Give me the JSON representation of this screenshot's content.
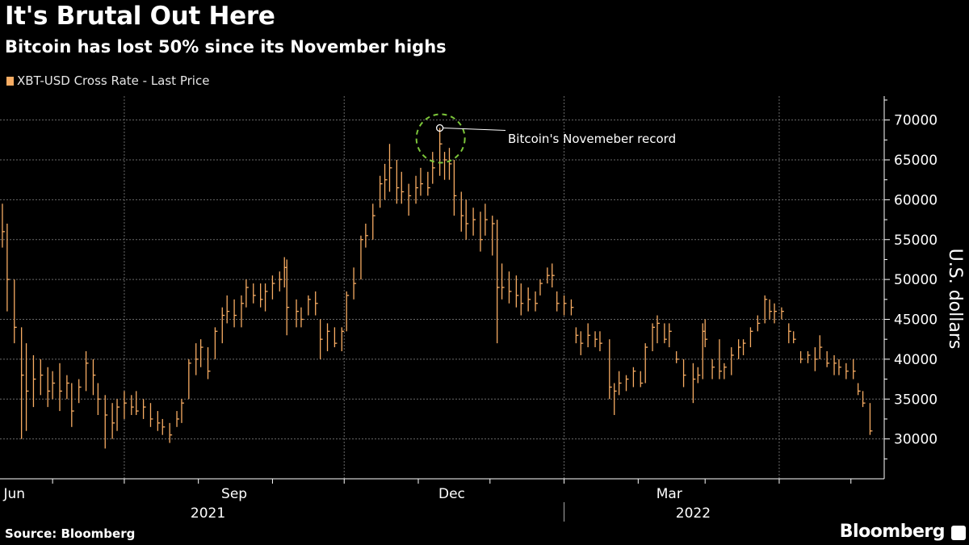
{
  "header": {
    "title": "It's Brutal Out Here",
    "subtitle": "Bitcoin has lost 50% since its November highs"
  },
  "footer": {
    "source": "Source: Bloomberg",
    "brand": "Bloomberg"
  },
  "chart_data": {
    "type": "ohlc-bar",
    "legend": [
      {
        "name": "XBT-USD Cross Rate - Last Price",
        "color": "#f7ac63"
      }
    ],
    "legend_placement": "top-left",
    "ylabel": "U.S. dollars",
    "ylim": [
      25000,
      73000
    ],
    "yticks": [
      "30000",
      "35000",
      "40000",
      "45000",
      "50000",
      "55000",
      "60000",
      "65000",
      "70000"
    ],
    "y_axis_side": "right",
    "xlim": [
      "2021-05-10",
      "2022-05-15"
    ],
    "xticks": [
      {
        "label": "Jun",
        "date": "2021-05-16"
      },
      {
        "label": "Sep",
        "date": "2021-08-16"
      },
      {
        "label": "Dec",
        "date": "2021-11-15"
      },
      {
        "label": "Mar",
        "date": "2022-02-14"
      }
    ],
    "year_labels": [
      {
        "label": "2021",
        "date": "2021-08-05"
      },
      {
        "label": "2022",
        "date": "2022-02-24"
      }
    ],
    "grid": true,
    "annotation": {
      "text": "Bitcoin's Novemeber record",
      "date": "2021-11-10",
      "value": 69000,
      "marker_color": "#7cc63a"
    },
    "columns": [
      "date",
      "high",
      "low",
      "close"
    ],
    "bars": [
      [
        "2021-05-11",
        59500,
        54000,
        56000
      ],
      [
        "2021-05-13",
        57000,
        46000,
        50000
      ],
      [
        "2021-05-16",
        50000,
        42000,
        44000
      ],
      [
        "2021-05-19",
        44000,
        30000,
        38000
      ],
      [
        "2021-05-21",
        42000,
        31000,
        36000
      ],
      [
        "2021-05-24",
        40500,
        34000,
        37500
      ],
      [
        "2021-05-27",
        40000,
        35500,
        38000
      ],
      [
        "2021-05-30",
        39000,
        34000,
        36000
      ],
      [
        "2021-06-01",
        38500,
        35000,
        37000
      ],
      [
        "2021-06-04",
        39500,
        33500,
        36000
      ],
      [
        "2021-06-07",
        38000,
        35000,
        37000
      ],
      [
        "2021-06-09",
        37000,
        31500,
        33500
      ],
      [
        "2021-06-12",
        37500,
        34500,
        36500
      ],
      [
        "2021-06-15",
        41000,
        36000,
        39500
      ],
      [
        "2021-06-18",
        40000,
        35500,
        38000
      ],
      [
        "2021-06-20",
        37000,
        33000,
        35000
      ],
      [
        "2021-06-23",
        35500,
        28800,
        33000
      ],
      [
        "2021-06-26",
        34500,
        30000,
        32000
      ],
      [
        "2021-06-28",
        35000,
        31000,
        34000
      ],
      [
        "2021-07-01",
        36000,
        32500,
        34500
      ],
      [
        "2021-07-04",
        35500,
        33000,
        34000
      ],
      [
        "2021-07-06",
        36000,
        33000,
        33500
      ],
      [
        "2021-07-09",
        35000,
        32500,
        34000
      ],
      [
        "2021-07-12",
        34500,
        31500,
        32500
      ],
      [
        "2021-07-15",
        33500,
        31000,
        32000
      ],
      [
        "2021-07-17",
        32500,
        30500,
        31500
      ],
      [
        "2021-07-20",
        32000,
        29500,
        30500
      ],
      [
        "2021-07-23",
        33500,
        31500,
        32500
      ],
      [
        "2021-07-25",
        35000,
        32000,
        34500
      ],
      [
        "2021-07-28",
        40000,
        35000,
        39500
      ],
      [
        "2021-07-31",
        42000,
        38000,
        40000
      ],
      [
        "2021-08-02",
        42500,
        39000,
        41500
      ],
      [
        "2021-08-05",
        41500,
        37500,
        38500
      ],
      [
        "2021-08-08",
        44000,
        40000,
        43500
      ],
      [
        "2021-08-11",
        46500,
        42000,
        45500
      ],
      [
        "2021-08-13",
        48000,
        44500,
        46000
      ],
      [
        "2021-08-16",
        47500,
        44000,
        45500
      ],
      [
        "2021-08-19",
        48000,
        44000,
        47000
      ],
      [
        "2021-08-21",
        50000,
        46500,
        49000
      ],
      [
        "2021-08-24",
        49500,
        47000,
        48000
      ],
      [
        "2021-08-27",
        49500,
        46500,
        47500
      ],
      [
        "2021-08-29",
        49500,
        46000,
        48500
      ],
      [
        "2021-09-01",
        50500,
        47500,
        49500
      ],
      [
        "2021-09-04",
        51000,
        48500,
        50000
      ],
      [
        "2021-09-06",
        52800,
        49000,
        51500
      ],
      [
        "2021-09-07",
        52500,
        43000,
        46500
      ],
      [
        "2021-09-11",
        47500,
        44000,
        46000
      ],
      [
        "2021-09-13",
        46500,
        44000,
        45000
      ],
      [
        "2021-09-16",
        48000,
        45500,
        47500
      ],
      [
        "2021-09-19",
        48500,
        45500,
        47000
      ],
      [
        "2021-09-21",
        45000,
        40000,
        42500
      ],
      [
        "2021-09-24",
        44500,
        41000,
        43500
      ],
      [
        "2021-09-27",
        44000,
        41500,
        42000
      ],
      [
        "2021-09-30",
        44000,
        41000,
        43500
      ],
      [
        "2021-10-02",
        48500,
        43500,
        48000
      ],
      [
        "2021-10-05",
        51500,
        47500,
        49500
      ],
      [
        "2021-10-08",
        55500,
        50000,
        55000
      ],
      [
        "2021-10-10",
        57000,
        54000,
        55500
      ],
      [
        "2021-10-13",
        59500,
        55000,
        58000
      ],
      [
        "2021-10-16",
        63000,
        59000,
        62000
      ],
      [
        "2021-10-18",
        64500,
        60000,
        62500
      ],
      [
        "2021-10-20",
        67000,
        61000,
        64000
      ],
      [
        "2021-10-23",
        65000,
        59500,
        61500
      ],
      [
        "2021-10-25",
        63500,
        59500,
        61000
      ],
      [
        "2021-10-28",
        62000,
        58000,
        60500
      ],
      [
        "2021-10-31",
        63000,
        59500,
        61500
      ],
      [
        "2021-11-02",
        64000,
        60500,
        62000
      ],
      [
        "2021-11-05",
        63500,
        60500,
        61500
      ],
      [
        "2021-11-07",
        66000,
        62000,
        64000
      ],
      [
        "2021-11-10",
        69000,
        63000,
        67000
      ],
      [
        "2021-11-12",
        66000,
        62500,
        65000
      ],
      [
        "2021-11-14",
        66500,
        62500,
        64500
      ],
      [
        "2021-11-16",
        65000,
        58000,
        60500
      ],
      [
        "2021-11-19",
        61000,
        56000,
        58000
      ],
      [
        "2021-11-21",
        60000,
        55000,
        57000
      ],
      [
        "2021-11-24",
        59000,
        55500,
        57500
      ],
      [
        "2021-11-27",
        58500,
        53500,
        55000
      ],
      [
        "2021-11-29",
        59500,
        55500,
        57500
      ],
      [
        "2021-12-02",
        58000,
        53000,
        57000
      ],
      [
        "2021-12-04",
        57500,
        42000,
        49000
      ],
      [
        "2021-12-06",
        52000,
        47500,
        49000
      ],
      [
        "2021-12-09",
        51000,
        47000,
        48500
      ],
      [
        "2021-12-12",
        50500,
        46500,
        48000
      ],
      [
        "2021-12-14",
        49500,
        45500,
        47000
      ],
      [
        "2021-12-17",
        49000,
        46000,
        47500
      ],
      [
        "2021-12-20",
        48500,
        46000,
        47000
      ],
      [
        "2021-12-22",
        50000,
        48000,
        49500
      ],
      [
        "2021-12-25",
        51500,
        49500,
        50500
      ],
      [
        "2021-12-27",
        52000,
        49000,
        50500
      ],
      [
        "2021-12-29",
        48500,
        46000,
        47000
      ],
      [
        "2022-01-01",
        48000,
        45500,
        47000
      ],
      [
        "2022-01-04",
        47500,
        45500,
        46500
      ],
      [
        "2022-01-06",
        44000,
        42000,
        43000
      ],
      [
        "2022-01-08",
        43500,
        40500,
        42000
      ],
      [
        "2022-01-11",
        44500,
        41500,
        43000
      ],
      [
        "2022-01-14",
        43500,
        41500,
        42500
      ],
      [
        "2022-01-16",
        43500,
        41000,
        42000
      ],
      [
        "2022-01-20",
        42500,
        35000,
        36500
      ],
      [
        "2022-01-22",
        37000,
        33000,
        36000
      ],
      [
        "2022-01-24",
        38500,
        35500,
        37000
      ],
      [
        "2022-01-27",
        38000,
        36000,
        37500
      ],
      [
        "2022-01-30",
        39000,
        36500,
        38500
      ],
      [
        "2022-02-02",
        38500,
        36500,
        37000
      ],
      [
        "2022-02-04",
        42000,
        37000,
        41500
      ],
      [
        "2022-02-07",
        44500,
        41000,
        44000
      ],
      [
        "2022-02-09",
        45500,
        42000,
        44500
      ],
      [
        "2022-02-12",
        44500,
        42000,
        42500
      ],
      [
        "2022-02-14",
        44500,
        41500,
        43500
      ],
      [
        "2022-02-17",
        41000,
        39500,
        40000
      ],
      [
        "2022-02-20",
        40000,
        36500,
        38000
      ],
      [
        "2022-02-24",
        39500,
        34500,
        37500
      ],
      [
        "2022-02-26",
        39000,
        37000,
        38000
      ],
      [
        "2022-02-28",
        44500,
        37500,
        43500
      ],
      [
        "2022-03-01",
        45000,
        41500,
        42500
      ],
      [
        "2022-03-04",
        40000,
        37500,
        39000
      ],
      [
        "2022-03-07",
        42500,
        37500,
        38500
      ],
      [
        "2022-03-09",
        39500,
        37500,
        39000
      ],
      [
        "2022-03-12",
        41500,
        38000,
        40500
      ],
      [
        "2022-03-15",
        42500,
        40000,
        41500
      ],
      [
        "2022-03-17",
        42500,
        40500,
        42000
      ],
      [
        "2022-03-20",
        44000,
        41500,
        43500
      ],
      [
        "2022-03-23",
        45500,
        43500,
        44500
      ],
      [
        "2022-03-26",
        48000,
        44500,
        47500
      ],
      [
        "2022-03-28",
        47500,
        45000,
        46000
      ],
      [
        "2022-03-30",
        47000,
        44500,
        46000
      ],
      [
        "2022-04-02",
        46500,
        45000,
        46000
      ],
      [
        "2022-04-05",
        44500,
        42000,
        43500
      ],
      [
        "2022-04-07",
        43500,
        42000,
        42500
      ],
      [
        "2022-04-10",
        41000,
        39500,
        40000
      ],
      [
        "2022-04-13",
        41000,
        39500,
        40500
      ],
      [
        "2022-04-16",
        41500,
        38500,
        40000
      ],
      [
        "2022-04-18",
        43000,
        40000,
        41500
      ],
      [
        "2022-04-21",
        41000,
        39000,
        39500
      ],
      [
        "2022-04-24",
        40500,
        38000,
        39500
      ],
      [
        "2022-04-26",
        40000,
        38000,
        39000
      ],
      [
        "2022-04-29",
        39500,
        37500,
        38500
      ],
      [
        "2022-05-02",
        40000,
        37500,
        38500
      ],
      [
        "2022-05-04",
        37000,
        35500,
        36000
      ],
      [
        "2022-05-06",
        36000,
        34000,
        34500
      ],
      [
        "2022-05-09",
        34500,
        30500,
        31000
      ]
    ]
  }
}
